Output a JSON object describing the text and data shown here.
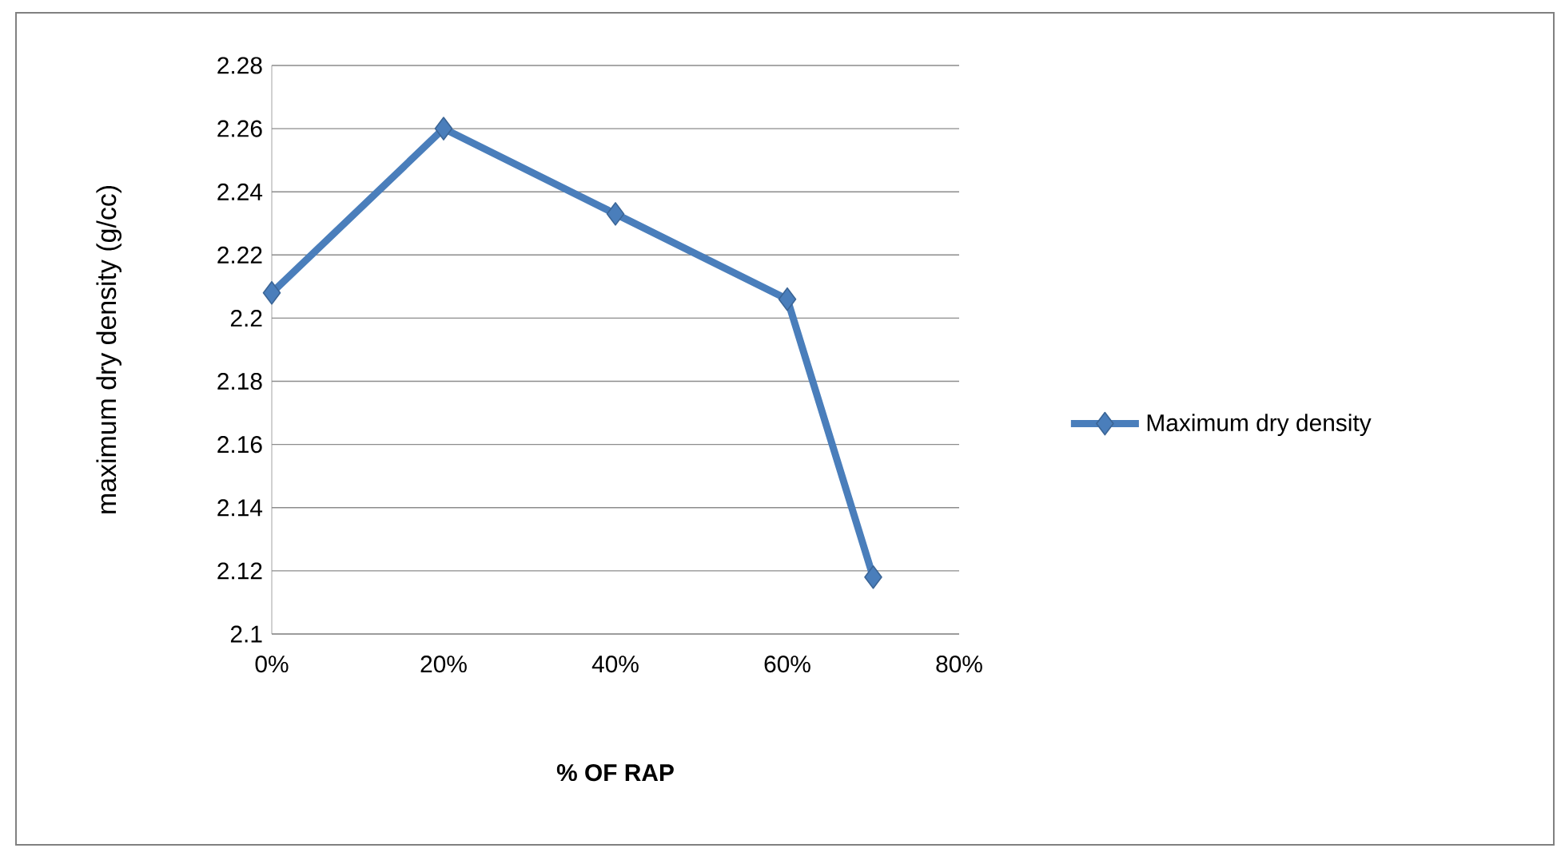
{
  "chart_data": {
    "type": "line",
    "xlabel": "**% OF RAP**",
    "ylabel": "maximum dry  density (g/cc)",
    "x": [
      0,
      20,
      40,
      60,
      70
    ],
    "series": [
      {
        "name": "Maximum dry density",
        "color": "#4a7ebb",
        "values": [
          2.208,
          2.26,
          2.233,
          2.206,
          2.118
        ]
      }
    ],
    "xlim": [
      0,
      80
    ],
    "xticks": [
      {
        "value": 0,
        "label": "0%"
      },
      {
        "value": 20,
        "label": "20%"
      },
      {
        "value": 40,
        "label": "40%"
      },
      {
        "value": 60,
        "label": "60%"
      },
      {
        "value": 80,
        "label": "80%"
      }
    ],
    "ylim": [
      2.1,
      2.28
    ],
    "yticks": [
      2.1,
      2.12,
      2.14,
      2.16,
      2.18,
      2.2,
      2.22,
      2.24,
      2.26,
      2.28
    ],
    "grid": "y",
    "legend": "right",
    "marker": "diamond",
    "line_style": "solid"
  }
}
